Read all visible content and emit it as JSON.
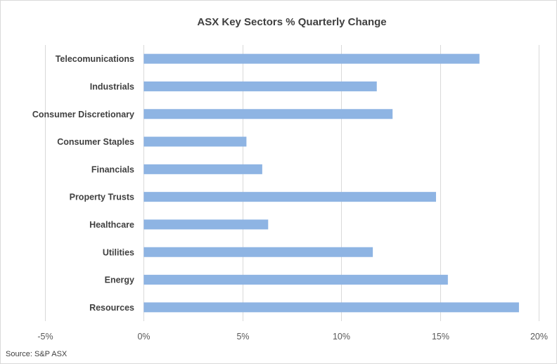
{
  "chart_data": {
    "type": "bar",
    "orientation": "horizontal",
    "title": "ASX Key Sectors % Quarterly Change",
    "categories": [
      "Telecomunications",
      "Industrials",
      "Consumer Discretionary",
      "Consumer Staples",
      "Financials",
      "Property Trusts",
      "Healthcare",
      "Utilities",
      "Energy",
      "Resources"
    ],
    "values": [
      17.0,
      11.8,
      12.6,
      5.2,
      6.0,
      14.8,
      6.3,
      11.6,
      15.4,
      19.0
    ],
    "xlim": [
      -5,
      20
    ],
    "xticks": [
      -5,
      0,
      5,
      10,
      15,
      20
    ],
    "xtick_labels": [
      "-5%",
      "0%",
      "5%",
      "10%",
      "15%",
      "20%"
    ],
    "xlabel": "",
    "ylabel": "",
    "grid": true,
    "legend": "none",
    "bar_color": "#8eb4e3",
    "source": "Source: S&P ASX"
  }
}
